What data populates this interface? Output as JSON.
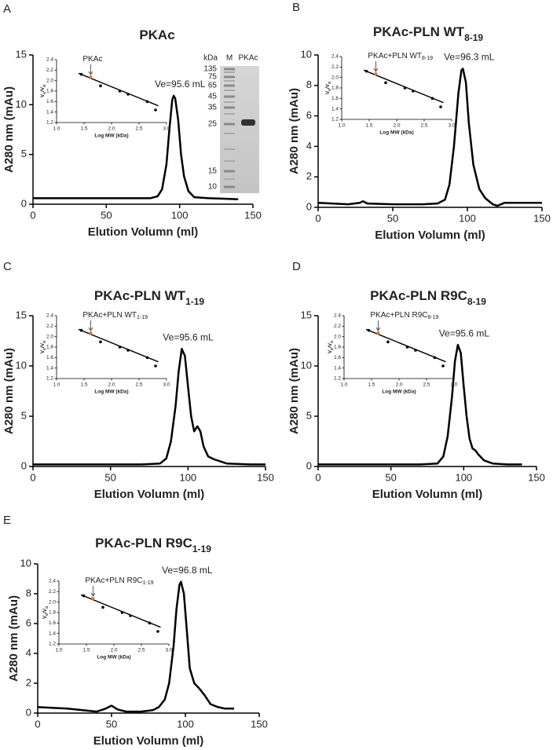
{
  "chart_data": [
    {
      "type": "line",
      "panel": "A",
      "title": [
        "PKAc"
      ],
      "xlabel": "Elution Volumn (ml)",
      "ylabel": "A280 nm (mAu)",
      "xlim": [
        0,
        150
      ],
      "xticks": [
        0,
        50,
        100,
        150
      ],
      "ylim": [
        0,
        15
      ],
      "yticks": [
        0,
        5,
        10,
        15
      ],
      "color": "#000000",
      "x": [
        0,
        20,
        40,
        60,
        80,
        85,
        88,
        91,
        93,
        95,
        96,
        97,
        99,
        101,
        103,
        106,
        110,
        120,
        130,
        140
      ],
      "values": [
        0.6,
        0.6,
        0.6,
        0.6,
        0.6,
        0.8,
        1.5,
        4,
        7.5,
        10.5,
        10.9,
        10.6,
        8.5,
        5,
        2.8,
        1.3,
        0.7,
        0.6,
        0.55,
        0.5
      ],
      "annotation": "Ve=95.6 mL",
      "gel": {
        "unit": "kDa",
        "lanes": [
          "M",
          "PKAc"
        ],
        "markers": [
          135,
          75,
          65,
          45,
          35,
          25,
          15,
          10
        ]
      },
      "inset": {
        "type": "scatter",
        "xlabel": "Log MW (kDa)",
        "ylabel": [
          "V",
          "e",
          "/V",
          "o"
        ],
        "xlim": [
          1.0,
          3.0
        ],
        "xticks": [
          {
            "value": 1,
            "label": "1.0"
          },
          {
            "value": 1.5,
            "label": "1.5"
          },
          {
            "value": 2,
            "label": "2.0"
          },
          {
            "value": 2.5,
            "label": "2.5"
          },
          {
            "value": 3,
            "label": "3.0"
          }
        ],
        "ylim": [
          1.2,
          2.4
        ],
        "yticks": [
          {
            "value": 1.2,
            "label": "1.2"
          },
          {
            "value": 1.4,
            "label": "1.4"
          },
          {
            "value": 1.6,
            "label": "1.6"
          },
          {
            "value": 1.8,
            "label": "1.8"
          },
          {
            "value": 2,
            "label": "2.0"
          },
          {
            "value": 2.2,
            "label": "2.2"
          },
          {
            "value": 2.4,
            "label": "2.4"
          }
        ],
        "x": [
          1.45,
          1.8,
          2.15,
          2.3,
          2.65,
          2.8
        ],
        "values": [
          2.12,
          1.9,
          1.8,
          1.74,
          1.6,
          1.44
        ],
        "color": "#000000",
        "sample_x": 1.62,
        "sample_y": 2.07,
        "sample_color": "#e07b39",
        "label": [
          "PKAc"
        ],
        "fit": {
          "x": [
            1.4,
            2.85
          ],
          "values": [
            2.14,
            1.52
          ]
        }
      }
    },
    {
      "type": "line",
      "panel": "B",
      "title": [
        "PKAc-PLN WT",
        "8-19"
      ],
      "xlabel": "Elution Volumn (ml)",
      "ylabel": "A280 nm (mAu)",
      "xlim": [
        0,
        150
      ],
      "xticks": [
        0,
        50,
        100,
        150
      ],
      "ylim": [
        0,
        10
      ],
      "yticks": [
        0,
        2,
        4,
        6,
        8,
        10
      ],
      "color": "#000000",
      "x": [
        0,
        20,
        28,
        30,
        33,
        50,
        70,
        80,
        85,
        88,
        91,
        94,
        96,
        97,
        99,
        101,
        104,
        108,
        112,
        117,
        120,
        125,
        135,
        150
      ],
      "values": [
        0.3,
        0.2,
        0.3,
        0.4,
        0.25,
        0.2,
        0.2,
        0.25,
        0.5,
        1.5,
        4,
        7.5,
        9.0,
        9.1,
        8.2,
        5.5,
        2.8,
        1.2,
        0.6,
        0.2,
        0.1,
        0.3,
        0.3,
        0.3
      ],
      "annotation": "Ve=96.3 mL",
      "inset": {
        "type": "scatter",
        "xlabel": "Log MW (kDa)",
        "ylabel": [
          "V",
          "e",
          "/V",
          "o"
        ],
        "xlim": [
          1.0,
          3.0
        ],
        "xticks": [
          {
            "value": 1,
            "label": "1.0"
          },
          {
            "value": 1.5,
            "label": "1.5"
          },
          {
            "value": 2,
            "label": "2.0"
          },
          {
            "value": 2.5,
            "label": "2.5"
          },
          {
            "value": 3,
            "label": "3.0"
          }
        ],
        "ylim": [
          1.2,
          2.4
        ],
        "yticks": [
          {
            "value": 1.2,
            "label": "1.2"
          },
          {
            "value": 1.4,
            "label": "1.4"
          },
          {
            "value": 1.6,
            "label": "1.6"
          },
          {
            "value": 1.8,
            "label": "1.8"
          },
          {
            "value": 2,
            "label": "2.0"
          },
          {
            "value": 2.2,
            "label": "2.2"
          },
          {
            "value": 2.4,
            "label": "2.4"
          }
        ],
        "x": [
          1.45,
          1.8,
          2.15,
          2.3,
          2.65,
          2.8
        ],
        "values": [
          2.12,
          1.9,
          1.8,
          1.74,
          1.6,
          1.44
        ],
        "color": "#000000",
        "sample_x": 1.62,
        "sample_y": 2.07,
        "sample_color": "#e07b39",
        "label": [
          "PKAc+PLN WT",
          "8-19"
        ],
        "fit": {
          "x": [
            1.4,
            2.85
          ],
          "values": [
            2.14,
            1.52
          ]
        }
      }
    },
    {
      "type": "line",
      "panel": "C",
      "title": [
        "PKAc-PLN WT",
        "1-19"
      ],
      "xlabel": "Elution Volumn (ml)",
      "ylabel": "A280 nm (mAu)",
      "xlim": [
        0,
        150
      ],
      "xticks": [
        0,
        50,
        100,
        150
      ],
      "ylim": [
        0,
        15
      ],
      "yticks": [
        0,
        5,
        10,
        15
      ],
      "color": "#000000",
      "x": [
        0,
        40,
        70,
        82,
        86,
        89,
        92,
        94,
        96,
        98,
        100,
        102,
        104,
        106,
        108,
        110,
        113,
        117,
        125,
        140,
        150
      ],
      "values": [
        0.2,
        0.2,
        0.2,
        0.3,
        0.8,
        2.5,
        6,
        9.5,
        11.7,
        11,
        8,
        5,
        3.5,
        4,
        3.5,
        2,
        1,
        0.7,
        0.3,
        0.2,
        0.2
      ],
      "annotation": "Ve=95.6 mL",
      "inset": {
        "type": "scatter",
        "xlabel": "Log MW (kDa)",
        "ylabel": [
          "V",
          "e",
          "/V",
          "o"
        ],
        "xlim": [
          1.0,
          3.0
        ],
        "xticks": [
          {
            "value": 1,
            "label": "1.0"
          },
          {
            "value": 1.5,
            "label": "1.5"
          },
          {
            "value": 2,
            "label": "2.0"
          },
          {
            "value": 2.5,
            "label": "2.5"
          },
          {
            "value": 3,
            "label": "3.0"
          }
        ],
        "ylim": [
          1.2,
          2.4
        ],
        "yticks": [
          {
            "value": 1.2,
            "label": "1.2"
          },
          {
            "value": 1.4,
            "label": "1.4"
          },
          {
            "value": 1.6,
            "label": "1.6"
          },
          {
            "value": 1.8,
            "label": "1.8"
          },
          {
            "value": 2,
            "label": "2.0"
          },
          {
            "value": 2.2,
            "label": "2.2"
          },
          {
            "value": 2.4,
            "label": "2.4"
          }
        ],
        "x": [
          1.45,
          1.8,
          2.15,
          2.3,
          2.65,
          2.8
        ],
        "values": [
          2.12,
          1.9,
          1.8,
          1.74,
          1.6,
          1.44
        ],
        "color": "#000000",
        "sample_x": 1.62,
        "sample_y": 2.07,
        "sample_color": "#e07b39",
        "label": [
          "PKAc+PLN WT",
          "1-19"
        ],
        "fit": {
          "x": [
            1.4,
            2.85
          ],
          "values": [
            2.14,
            1.52
          ]
        }
      }
    },
    {
      "type": "line",
      "panel": "D",
      "title": [
        "PKAc-PLN R9C",
        "8-19"
      ],
      "xlabel": "Elution Volumn (ml)",
      "ylabel": "A280 nm (mAu)",
      "xlim": [
        0,
        150
      ],
      "xticks": [
        0,
        50,
        100,
        150
      ],
      "ylim": [
        0,
        15
      ],
      "yticks": [
        0,
        5,
        10,
        15
      ],
      "color": "#000000",
      "x": [
        0,
        40,
        70,
        82,
        86,
        89,
        92,
        94,
        96,
        98,
        100,
        102,
        104,
        106,
        108,
        110,
        114,
        120,
        130,
        140
      ],
      "values": [
        0.2,
        0.2,
        0.2,
        0.3,
        1,
        3,
        7,
        10.5,
        12.1,
        11.3,
        8,
        5,
        2.8,
        1.8,
        1.6,
        1.2,
        0.6,
        0.3,
        0.2,
        0.2
      ],
      "annotation": "Ve=95.6 mL",
      "inset": {
        "type": "scatter",
        "xlabel": "Log MW (kDa)",
        "ylabel": [
          "V",
          "e",
          "/V",
          "o"
        ],
        "xlim": [
          1.0,
          3.0
        ],
        "xticks": [
          {
            "value": 1,
            "label": "1.0"
          },
          {
            "value": 1.5,
            "label": "1.5"
          },
          {
            "value": 2,
            "label": "2.0"
          },
          {
            "value": 2.5,
            "label": "2.5"
          },
          {
            "value": 3,
            "label": "3.0"
          }
        ],
        "ylim": [
          1.2,
          2.4
        ],
        "yticks": [
          {
            "value": 1.2,
            "label": "1.2"
          },
          {
            "value": 1.4,
            "label": "1.4"
          },
          {
            "value": 1.6,
            "label": "1.6"
          },
          {
            "value": 1.8,
            "label": "1.8"
          },
          {
            "value": 2,
            "label": "2.0"
          },
          {
            "value": 2.2,
            "label": "2.2"
          },
          {
            "value": 2.4,
            "label": "2.4"
          }
        ],
        "x": [
          1.45,
          1.8,
          2.15,
          2.3,
          2.65,
          2.8
        ],
        "values": [
          2.12,
          1.9,
          1.8,
          1.74,
          1.6,
          1.44
        ],
        "color": "#000000",
        "sample_x": 1.62,
        "sample_y": 2.07,
        "sample_color": "#e07b39",
        "label": [
          "PKAc+PLN R9C",
          "8-19"
        ],
        "fit": {
          "x": [
            1.4,
            2.85
          ],
          "values": [
            2.14,
            1.52
          ]
        }
      }
    },
    {
      "type": "line",
      "panel": "E",
      "title": [
        "PKAc-PLN R9C",
        "1-19"
      ],
      "xlabel": "Elution Volumn (ml)",
      "ylabel": "A280 nm (mAu)",
      "xlim": [
        0,
        150
      ],
      "xticks": [
        0,
        50,
        100,
        150
      ],
      "ylim": [
        0,
        10
      ],
      "yticks": [
        0,
        2,
        4,
        6,
        8,
        10
      ],
      "color": "#000000",
      "x": [
        0,
        20,
        40,
        46,
        50,
        54,
        60,
        70,
        78,
        82,
        86,
        89,
        92,
        94,
        96,
        97,
        99,
        101,
        103,
        106,
        109,
        113,
        117,
        122,
        127,
        133
      ],
      "values": [
        0.4,
        0.3,
        0.1,
        0.3,
        0.5,
        0.25,
        0.1,
        0.1,
        0.2,
        0.4,
        0.9,
        2,
        4.5,
        7,
        8.6,
        8.8,
        8,
        5.5,
        3,
        2,
        1.7,
        1.2,
        0.6,
        0.4,
        0.3,
        0.3
      ],
      "annotation": "Ve=96.8 mL",
      "inset": {
        "type": "scatter",
        "xlabel": "Log MW (kDa)",
        "ylabel": [
          "V",
          "e",
          "/V",
          "o"
        ],
        "xlim": [
          1.0,
          3.0
        ],
        "xticks": [
          {
            "value": 1,
            "label": "1.0"
          },
          {
            "value": 1.5,
            "label": "1.5"
          },
          {
            "value": 2,
            "label": "2.0"
          },
          {
            "value": 2.5,
            "label": "2.5"
          },
          {
            "value": 3,
            "label": "3.0"
          }
        ],
        "ylim": [
          1.2,
          2.4
        ],
        "yticks": [
          {
            "value": 1.2,
            "label": "1.2"
          },
          {
            "value": 1.4,
            "label": "1.4"
          },
          {
            "value": 1.6,
            "label": "1.6"
          },
          {
            "value": 1.8,
            "label": "1.8"
          },
          {
            "value": 2,
            "label": "2.0"
          },
          {
            "value": 2.2,
            "label": "2.2"
          },
          {
            "value": 2.4,
            "label": "2.4"
          }
        ],
        "x": [
          1.45,
          1.8,
          2.15,
          2.3,
          2.65,
          2.8
        ],
        "values": [
          2.12,
          1.9,
          1.8,
          1.74,
          1.6,
          1.44
        ],
        "color": "#000000",
        "sample_x": 1.62,
        "sample_y": 2.07,
        "sample_color": "#e07b39",
        "label": [
          "PKAc+PLN R9C",
          "1-19"
        ],
        "fit": {
          "x": [
            1.4,
            2.85
          ],
          "values": [
            2.14,
            1.52
          ]
        }
      }
    }
  ]
}
